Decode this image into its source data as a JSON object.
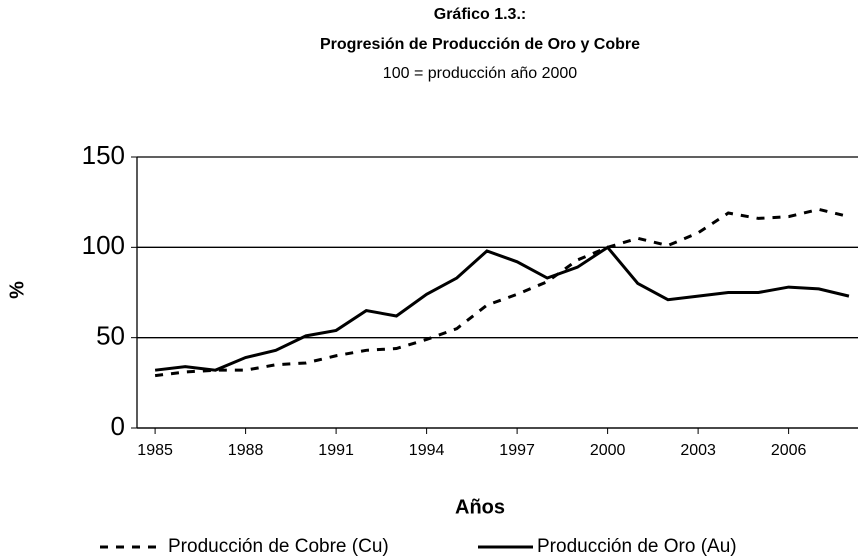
{
  "chart_data": {
    "type": "line",
    "title": "Gráfico 1.3.:",
    "subtitle": "Progresión de Producción de Oro y Cobre",
    "note": "100 = producción año 2000",
    "x_label": "Años",
    "y_label": "%",
    "x": [
      1985,
      1986,
      1987,
      1988,
      1989,
      1990,
      1991,
      1992,
      1993,
      1994,
      1995,
      1996,
      1997,
      1998,
      1999,
      2000,
      2001,
      2002,
      2003,
      2004,
      2005,
      2006,
      2007,
      2008
    ],
    "series": [
      {
        "name": "Producción de Cobre (Cu)",
        "color": "#000000",
        "line_style": "dashed",
        "values": [
          29,
          31,
          32,
          32,
          35,
          36,
          40,
          43,
          44,
          49,
          55,
          68,
          74,
          81,
          93,
          100,
          105,
          101,
          108,
          119,
          116,
          117,
          121,
          117
        ]
      },
      {
        "name": "Producción de Oro (Au)",
        "color": "#000000",
        "line_style": "solid",
        "values": [
          32,
          34,
          32,
          39,
          43,
          51,
          54,
          65,
          62,
          74,
          83,
          98,
          92,
          83,
          89,
          100,
          80,
          71,
          73,
          75,
          75,
          78,
          77,
          73
        ]
      }
    ],
    "xlim": [
      1984.4,
      2008.3
    ],
    "xticks": [
      1985,
      1988,
      1991,
      1994,
      1997,
      2000,
      2003,
      2006
    ],
    "ylim": [
      0,
      150
    ],
    "yticks": [
      0,
      50,
      100,
      150
    ],
    "grid": true,
    "legend": "bottom"
  }
}
